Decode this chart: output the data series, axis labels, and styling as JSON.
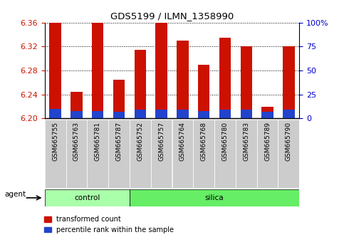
{
  "title": "GDS5199 / ILMN_1358990",
  "samples": [
    "GSM665755",
    "GSM665763",
    "GSM665781",
    "GSM665787",
    "GSM665752",
    "GSM665757",
    "GSM665764",
    "GSM665768",
    "GSM665780",
    "GSM665783",
    "GSM665789",
    "GSM665790"
  ],
  "red_values": [
    6.36,
    6.245,
    6.36,
    6.265,
    6.315,
    6.36,
    6.33,
    6.29,
    6.335,
    6.32,
    6.22,
    6.32
  ],
  "blue_pct": [
    10,
    8,
    8,
    7,
    9,
    9,
    9,
    8,
    9,
    9,
    7,
    9
  ],
  "base": 6.2,
  "ylim_left": [
    6.2,
    6.36
  ],
  "ylim_right": [
    0,
    100
  ],
  "right_ticks": [
    0,
    25,
    50,
    75,
    100
  ],
  "right_labels": [
    "0",
    "25",
    "50",
    "75",
    "100%"
  ],
  "left_ticks": [
    6.2,
    6.24,
    6.28,
    6.32,
    6.36
  ],
  "control_samples": 4,
  "silica_samples": 8,
  "control_label": "control",
  "silica_label": "silica",
  "agent_label": "agent",
  "legend_red": "transformed count",
  "legend_blue": "percentile rank within the sample",
  "bar_width": 0.55,
  "red_color": "#cc1100",
  "blue_color": "#2244cc",
  "control_color": "#aaffaa",
  "silica_color": "#66ee66",
  "tick_bg_color": "#cccccc",
  "right_label_color": "#0000cc",
  "ylabel_color": "#cc1100"
}
